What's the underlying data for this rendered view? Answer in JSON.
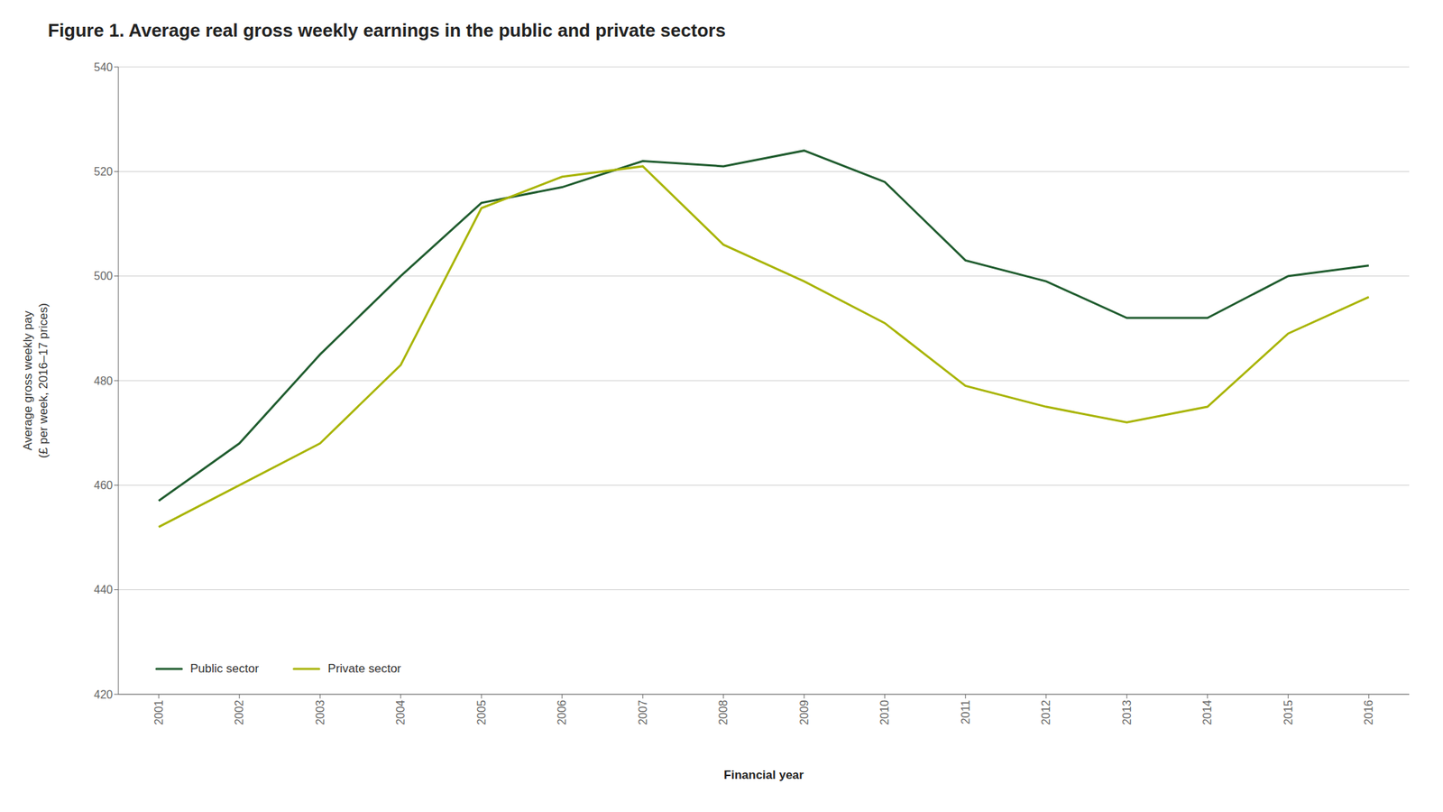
{
  "chart_data": {
    "type": "line",
    "title": "Figure 1. Average real gross weekly earnings in the public and private sectors",
    "x_label": "Financial year",
    "y_label": "Average gross weekly pay\n(£ per week, 2016–17 prices)",
    "x": [
      2001,
      2002,
      2003,
      2004,
      2005,
      2006,
      2007,
      2008,
      2009,
      2010,
      2011,
      2012,
      2013,
      2014,
      2015,
      2016
    ],
    "series": [
      {
        "name": "Public sector",
        "color": "#1f5c2e",
        "values": [
          457,
          468,
          485,
          500,
          514,
          517,
          522,
          521,
          524,
          518,
          503,
          499,
          492,
          492,
          500,
          502
        ]
      },
      {
        "name": "Private sector",
        "color": "#a8b400",
        "values": [
          452,
          460,
          468,
          483,
          513,
          519,
          521,
          506,
          499,
          491,
          479,
          475,
          472,
          475,
          489,
          496
        ]
      }
    ],
    "xlim": [
      2000.5,
      2016.5
    ],
    "xticks": [
      2001,
      2002,
      2003,
      2004,
      2005,
      2006,
      2007,
      2008,
      2009,
      2010,
      2011,
      2012,
      2013,
      2014,
      2015,
      2016
    ],
    "ylim": [
      420,
      540
    ],
    "yticks": [
      420,
      440,
      460,
      480,
      500,
      520,
      540
    ],
    "grid": "y",
    "legend": "lower left"
  }
}
